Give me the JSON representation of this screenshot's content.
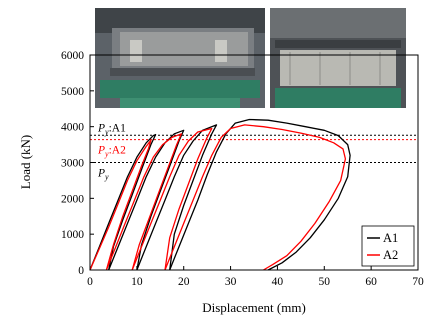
{
  "chart_data": {
    "type": "line",
    "xlabel": "Displacement (mm)",
    "ylabel": "Load (kN)",
    "xlim": [
      0,
      70
    ],
    "ylim": [
      0,
      6000
    ],
    "xticks": [
      0,
      10,
      20,
      30,
      40,
      50,
      60,
      70
    ],
    "yticks": [
      0,
      1000,
      2000,
      3000,
      4000,
      5000,
      6000
    ],
    "grid": false,
    "legend": {
      "placement": "bottom-right",
      "entries": [
        "A1",
        "A2"
      ]
    },
    "reference_lines": [
      {
        "label_parts": [
          "P",
          "y",
          ":A1"
        ],
        "y": 3760,
        "color": "#000000",
        "style": "dotted"
      },
      {
        "label_parts": [
          "P",
          "y",
          ":A2"
        ],
        "y": 3640,
        "color": "#ff0000",
        "style": "dotted"
      },
      {
        "label_parts": [
          "P",
          "y",
          ""
        ],
        "y": 3000,
        "color": "#000000",
        "style": "dotted"
      }
    ],
    "series": [
      {
        "name": "A1",
        "color": "#000000",
        "segments": [
          [
            [
              0,
              0
            ],
            [
              2,
              650
            ],
            [
              4,
              1300
            ],
            [
              6,
              1950
            ],
            [
              8,
              2600
            ],
            [
              10,
              3150
            ],
            [
              12,
              3550
            ],
            [
              13.5,
              3750
            ],
            [
              14,
              3780
            ],
            [
              13,
              3500
            ],
            [
              11,
              2800
            ],
            [
              9,
              2100
            ],
            [
              7,
              1400
            ],
            [
              5,
              650
            ],
            [
              4,
              0
            ]
          ],
          [
            [
              4,
              0
            ],
            [
              6,
              650
            ],
            [
              8,
              1300
            ],
            [
              10,
              1950
            ],
            [
              12,
              2600
            ],
            [
              14,
              3150
            ],
            [
              16,
              3550
            ],
            [
              18,
              3800
            ],
            [
              20,
              3900
            ],
            [
              19,
              3600
            ],
            [
              17,
              2900
            ],
            [
              15,
              2200
            ],
            [
              13,
              1500
            ],
            [
              11,
              700
            ],
            [
              10,
              0
            ]
          ],
          [
            [
              10,
              0
            ],
            [
              12,
              650
            ],
            [
              14,
              1300
            ],
            [
              16,
              1950
            ],
            [
              18,
              2600
            ],
            [
              20,
              3200
            ],
            [
              22,
              3600
            ],
            [
              24,
              3900
            ],
            [
              27,
              4050
            ],
            [
              26,
              3800
            ],
            [
              24,
              3200
            ],
            [
              22,
              2500
            ],
            [
              20,
              1800
            ],
            [
              18,
              1000
            ],
            [
              17,
              0
            ]
          ],
          [
            [
              17,
              0
            ],
            [
              19,
              650
            ],
            [
              21,
              1300
            ],
            [
              23,
              1950
            ],
            [
              25,
              2650
            ],
            [
              27,
              3300
            ],
            [
              29,
              3800
            ],
            [
              31,
              4100
            ],
            [
              34,
              4200
            ],
            [
              38,
              4180
            ],
            [
              42,
              4100
            ],
            [
              46,
              4000
            ],
            [
              50,
              3900
            ],
            [
              53,
              3750
            ],
            [
              55,
              3500
            ],
            [
              55.5,
              3200
            ],
            [
              55,
              2600
            ],
            [
              53,
              2000
            ],
            [
              50,
              1400
            ],
            [
              47,
              900
            ],
            [
              44,
              500
            ],
            [
              41,
              200
            ],
            [
              38,
              0
            ]
          ]
        ]
      },
      {
        "name": "A2",
        "color": "#ff0000",
        "segments": [
          [
            [
              0,
              0
            ],
            [
              2,
              600
            ],
            [
              4,
              1200
            ],
            [
              6,
              1850
            ],
            [
              8,
              2500
            ],
            [
              10,
              3050
            ],
            [
              12,
              3450
            ],
            [
              13,
              3620
            ],
            [
              12.5,
              3400
            ],
            [
              11,
              2900
            ],
            [
              9,
              2200
            ],
            [
              7,
              1500
            ],
            [
              5,
              700
            ],
            [
              3.5,
              0
            ]
          ],
          [
            [
              3.5,
              0
            ],
            [
              5.5,
              650
            ],
            [
              7.5,
              1300
            ],
            [
              9.5,
              1950
            ],
            [
              11.5,
              2600
            ],
            [
              13.5,
              3150
            ],
            [
              15.5,
              3500
            ],
            [
              17.5,
              3700
            ],
            [
              19.5,
              3800
            ],
            [
              18.5,
              3500
            ],
            [
              16.5,
              2800
            ],
            [
              14.5,
              2100
            ],
            [
              12.5,
              1400
            ],
            [
              10.5,
              700
            ],
            [
              9,
              0
            ]
          ],
          [
            [
              9,
              0
            ],
            [
              11,
              650
            ],
            [
              13,
              1300
            ],
            [
              15,
              1950
            ],
            [
              17,
              2600
            ],
            [
              19,
              3200
            ],
            [
              21,
              3600
            ],
            [
              23,
              3850
            ],
            [
              26,
              3950
            ],
            [
              25,
              3700
            ],
            [
              23,
              3100
            ],
            [
              21,
              2400
            ],
            [
              19,
              1700
            ],
            [
              17,
              900
            ],
            [
              16,
              0
            ]
          ],
          [
            [
              16,
              0
            ],
            [
              18,
              650
            ],
            [
              20,
              1300
            ],
            [
              22,
              1950
            ],
            [
              24,
              2600
            ],
            [
              26,
              3200
            ],
            [
              28,
              3700
            ],
            [
              30,
              3950
            ],
            [
              33,
              4050
            ],
            [
              37,
              4000
            ],
            [
              41,
              3920
            ],
            [
              45,
              3820
            ],
            [
              49,
              3700
            ],
            [
              52,
              3550
            ],
            [
              54,
              3380
            ],
            [
              54.5,
              3100
            ],
            [
              53.5,
              2500
            ],
            [
              51,
              1900
            ],
            [
              48,
              1300
            ],
            [
              45,
              800
            ],
            [
              42,
              400
            ],
            [
              39,
              150
            ],
            [
              37,
              0
            ]
          ]
        ]
      }
    ]
  }
}
